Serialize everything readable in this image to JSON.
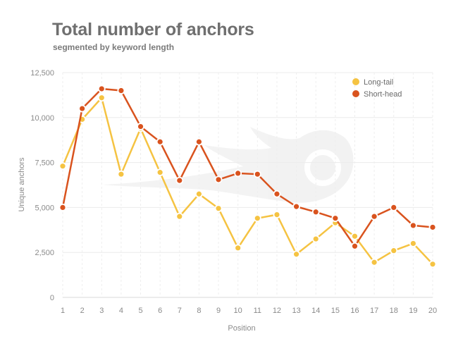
{
  "chart_data": {
    "type": "line",
    "title": "Total number of anchors",
    "subtitle": "segmented by keyword length",
    "xlabel": "Position",
    "ylabel": "Unique anchors",
    "x": [
      1,
      2,
      3,
      4,
      5,
      6,
      7,
      8,
      9,
      10,
      11,
      12,
      13,
      14,
      15,
      16,
      17,
      18,
      19,
      20
    ],
    "ylim": [
      0,
      12500
    ],
    "yticks": [
      0,
      2500,
      5000,
      7500,
      10000,
      12500
    ],
    "ytick_labels": [
      "0",
      "2,500",
      "5,000",
      "7,500",
      "10,000",
      "12,500"
    ],
    "grid": true,
    "legend_position": "top-right",
    "series": [
      {
        "name": "Long-tail",
        "color": "#f5c342",
        "values": [
          7300,
          9900,
          11100,
          6850,
          9400,
          6950,
          4500,
          5750,
          4950,
          2750,
          4400,
          4600,
          2400,
          3250,
          4150,
          3400,
          1950,
          2600,
          3000,
          1850
        ]
      },
      {
        "name": "Short-head",
        "color": "#d9531e",
        "values": [
          5000,
          10500,
          11600,
          11500,
          9500,
          8650,
          6500,
          8650,
          6550,
          6900,
          6850,
          5750,
          5050,
          4750,
          4400,
          2850,
          4500,
          5000,
          4000,
          3900
        ]
      }
    ]
  }
}
